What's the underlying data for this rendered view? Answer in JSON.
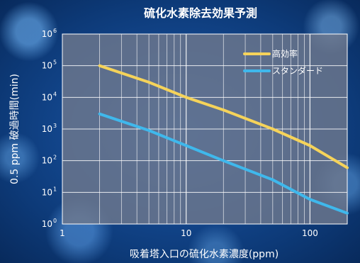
{
  "chart_data": {
    "type": "line",
    "title": "硫化水素除去効果予測",
    "xlabel": "吸着塔入口の硫化水素濃度(ppm)",
    "ylabel": "0.5 ppm 破過時間(min)",
    "x_scale": "log",
    "y_scale": "log",
    "xlim": [
      1,
      200
    ],
    "ylim": [
      1,
      1000000
    ],
    "x_ticks": [
      {
        "value": 1,
        "label": "1"
      },
      {
        "value": 10,
        "label": "10"
      },
      {
        "value": 100,
        "label": "100"
      }
    ],
    "y_ticks": [
      {
        "value": 1,
        "base": "10",
        "exp": "0"
      },
      {
        "value": 10,
        "base": "10",
        "exp": "1"
      },
      {
        "value": 100,
        "base": "10",
        "exp": "2"
      },
      {
        "value": 1000,
        "base": "10",
        "exp": "3"
      },
      {
        "value": 10000,
        "base": "10",
        "exp": "4"
      },
      {
        "value": 100000,
        "base": "10",
        "exp": "5"
      },
      {
        "value": 1000000,
        "base": "10",
        "exp": "6"
      }
    ],
    "grid": true,
    "legend_position": "top-right",
    "series": [
      {
        "name": "高効率",
        "color": "#f5d35a",
        "points": [
          [
            2,
            100000
          ],
          [
            5,
            30000
          ],
          [
            10,
            10000
          ],
          [
            20,
            4000
          ],
          [
            50,
            1000
          ],
          [
            100,
            300
          ],
          [
            200,
            60
          ]
        ]
      },
      {
        "name": "スタンダード",
        "color": "#3fb8ec",
        "points": [
          [
            2,
            3000
          ],
          [
            5,
            900
          ],
          [
            10,
            300
          ],
          [
            20,
            100
          ],
          [
            50,
            25
          ],
          [
            100,
            6
          ],
          [
            200,
            2.2
          ]
        ]
      }
    ]
  }
}
